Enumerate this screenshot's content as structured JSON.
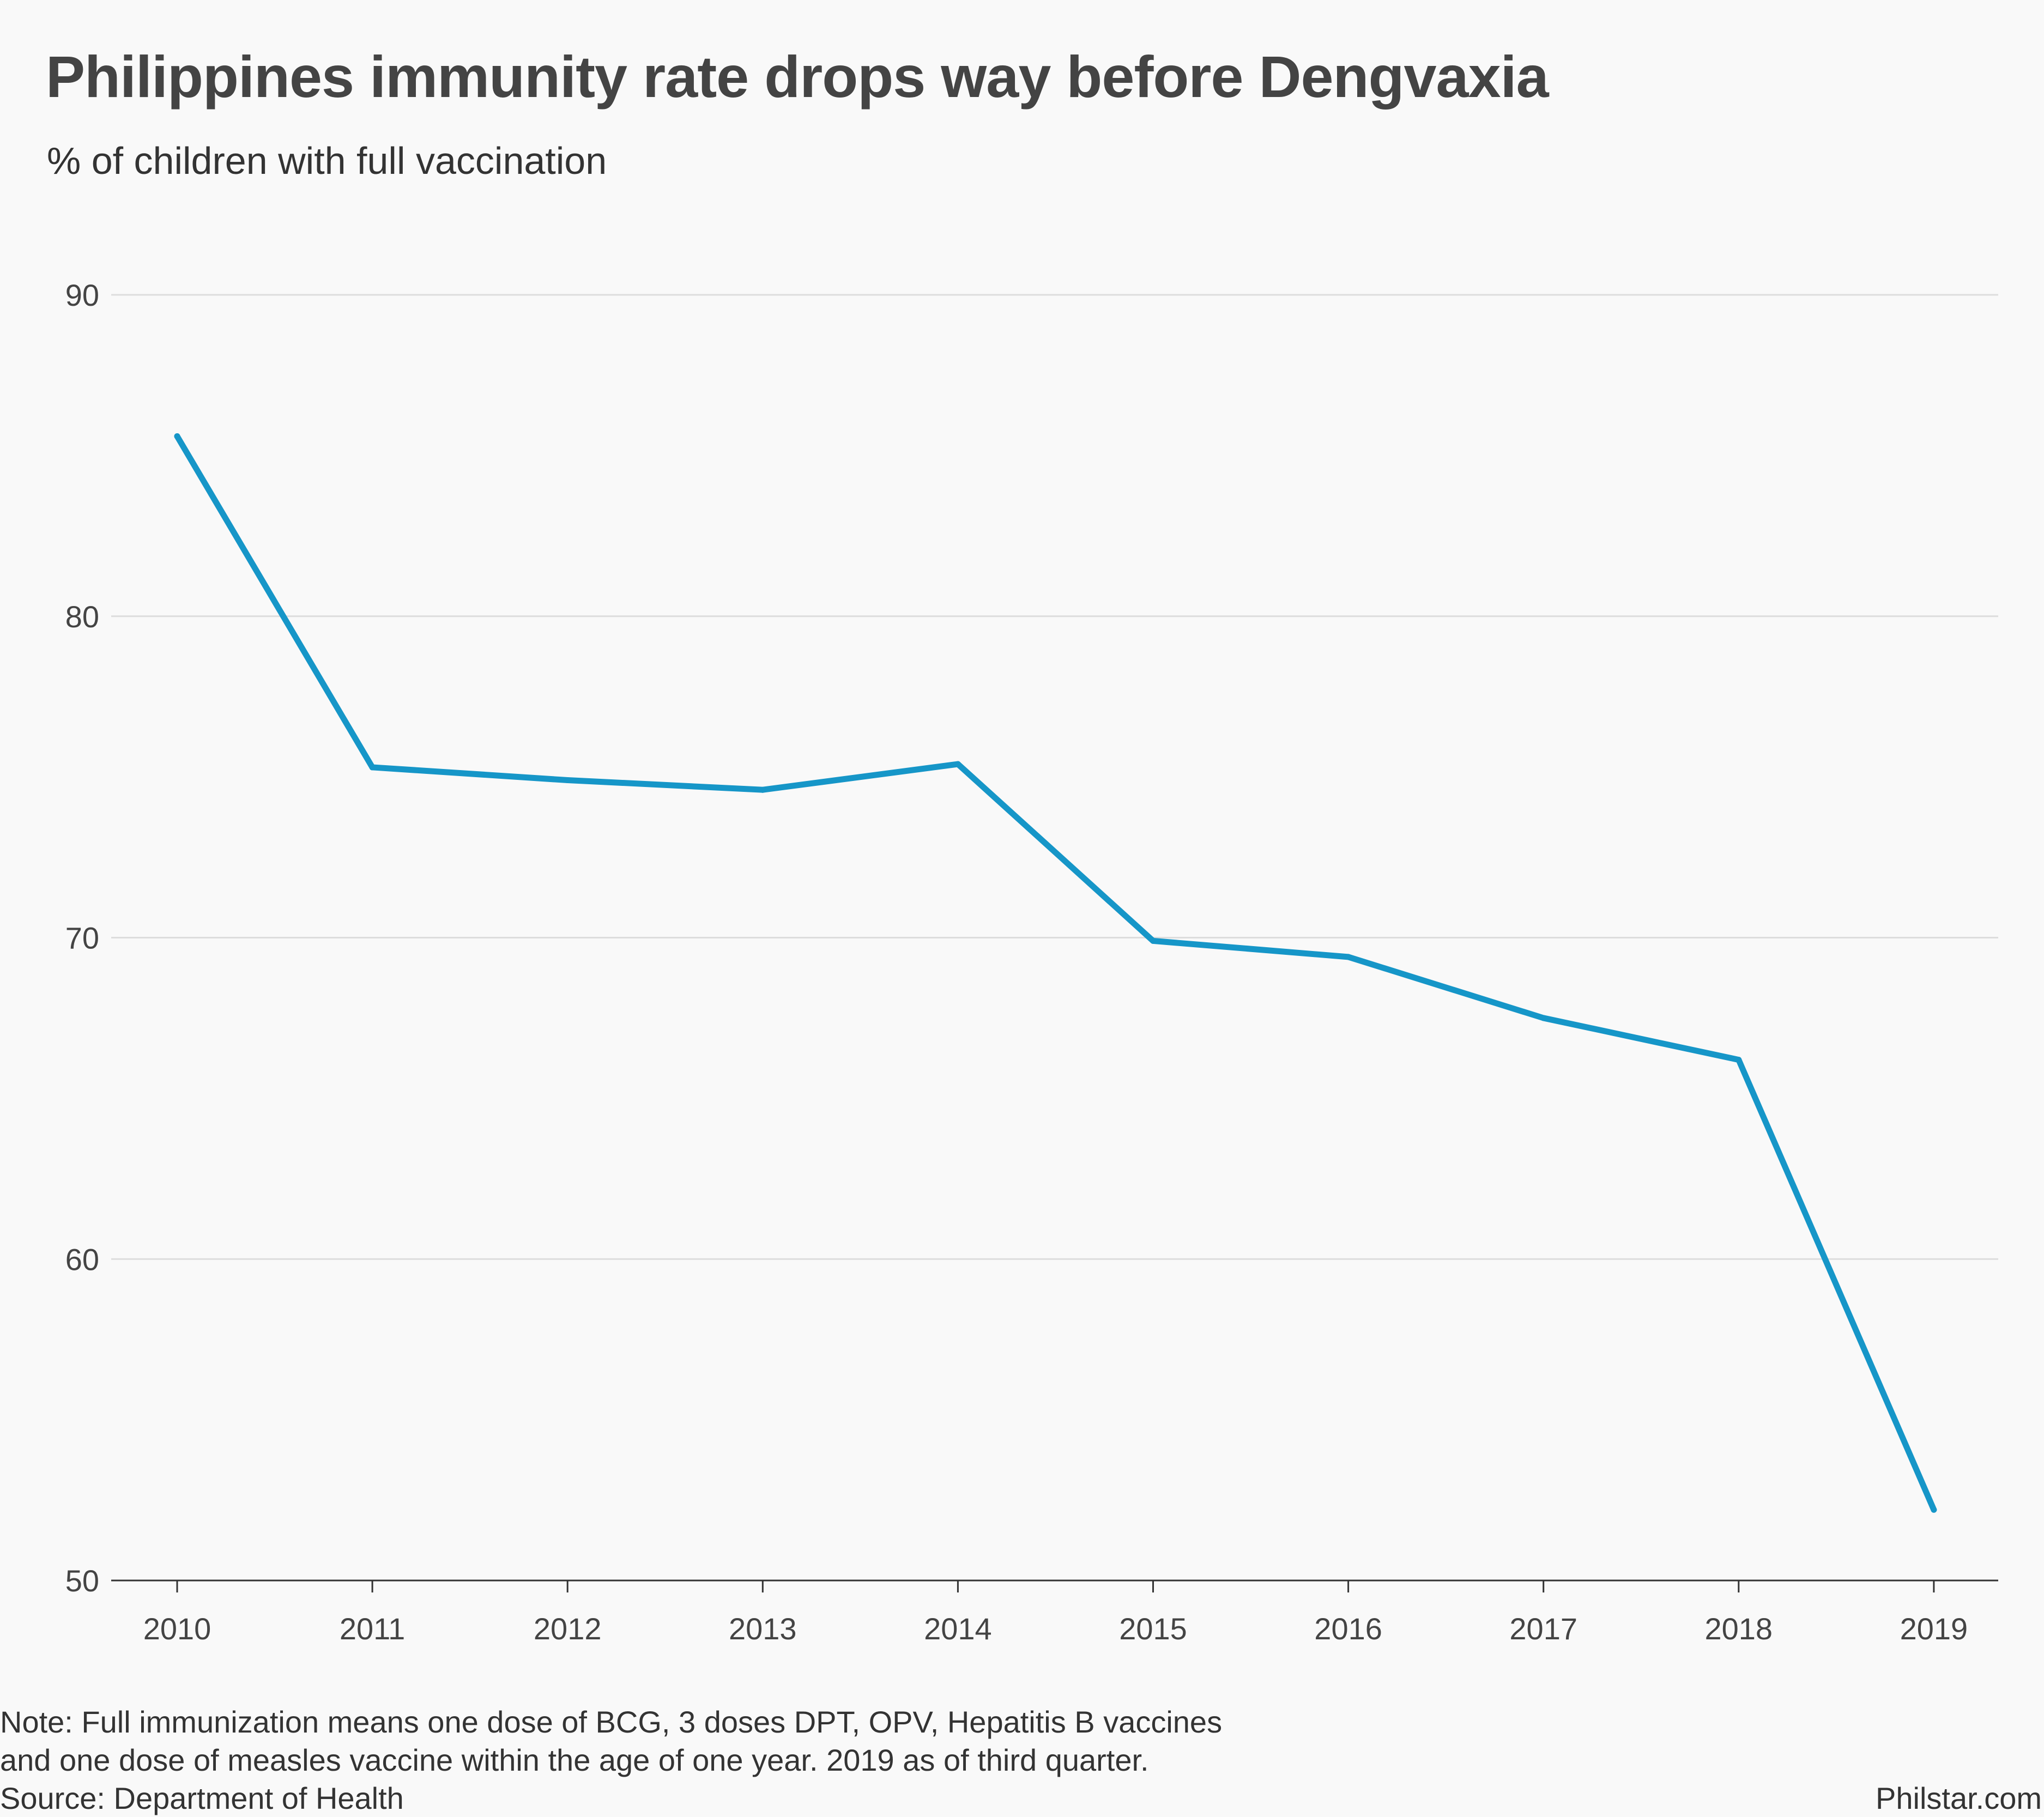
{
  "title": "Philippines immunity rate drops way before Dengvaxia",
  "subtitle": "% of children with full vaccination",
  "footer": {
    "note_line1": "Note: Full immunization means one dose of BCG, 3 doses DPT, OPV, Hepatitis B vaccines",
    "note_line2": "and one dose of measles vaccine within the age of one year. 2019 as of third quarter.",
    "source": "Source: Department of Health",
    "credit": "Philstar.com"
  },
  "colors": {
    "line": "#1696c8",
    "grid": "#dddddd",
    "axis": "#333333",
    "background": "#f9f9f9"
  },
  "chart_data": {
    "type": "line",
    "title": "Philippines immunity rate drops way before Dengvaxia",
    "subtitle": "% of children with full vaccination",
    "xlabel": "",
    "ylabel": "",
    "x": [
      "2010",
      "2011",
      "2012",
      "2013",
      "2014",
      "2015",
      "2016",
      "2017",
      "2018",
      "2019"
    ],
    "series": [
      {
        "values": [
          85.6,
          75.3,
          74.9,
          74.6,
          75.4,
          69.9,
          69.4,
          67.5,
          66.2,
          52.2
        ]
      }
    ],
    "y_ticks": [
      "50",
      "60",
      "70",
      "80",
      "90"
    ],
    "ylim": [
      50,
      90
    ],
    "grid": "horizontal",
    "legend": "none"
  }
}
